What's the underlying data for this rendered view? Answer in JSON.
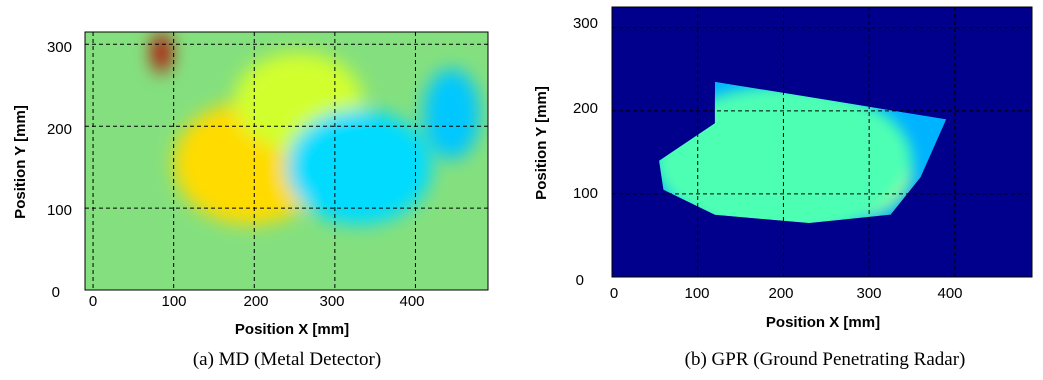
{
  "chart_data": [
    {
      "type": "heatmap",
      "caption": "(a) MD (Metal Detector)",
      "xlabel": "Position X [mm]",
      "ylabel": "Position Y [mm]",
      "xlim": [
        -10,
        490
      ],
      "ylim": [
        0,
        315
      ],
      "xticks": [
        "0",
        "100",
        "200",
        "300",
        "400"
      ],
      "yticks": [
        "0",
        "100",
        "200",
        "300"
      ],
      "grid": true,
      "background_color": "#84e07e",
      "blobs": [
        {
          "x": 195,
          "y": 155,
          "rx": 55,
          "ry": 42,
          "value": 0.82
        },
        {
          "x": 195,
          "y": 155,
          "rx": 95,
          "ry": 75,
          "value": 0.66
        },
        {
          "x": 255,
          "y": 230,
          "rx": 80,
          "ry": 60,
          "value": 0.58
        },
        {
          "x": 340,
          "y": 145,
          "rx": 45,
          "ry": 30,
          "value": 0.2
        },
        {
          "x": 330,
          "y": 150,
          "rx": 90,
          "ry": 70,
          "value": 0.34
        },
        {
          "x": 445,
          "y": 215,
          "rx": 35,
          "ry": 55,
          "value": 0.32
        },
        {
          "x": 85,
          "y": 290,
          "rx": 12,
          "ry": 25,
          "value": 0.95
        }
      ]
    },
    {
      "type": "heatmap",
      "caption": "(b) GPR (Ground Penetrating Radar)",
      "xlabel": "Position X [mm]",
      "ylabel": "Position Y [mm]",
      "xlim": [
        0,
        490
      ],
      "ylim": [
        0,
        325
      ],
      "xticks": [
        "0",
        "100",
        "200",
        "300",
        "400"
      ],
      "yticks": [
        "0",
        "100",
        "200",
        "300"
      ],
      "grid": true,
      "background_color": "#00008c",
      "region": [
        [
          55,
          140
        ],
        [
          120,
          185
        ],
        [
          120,
          235
        ],
        [
          390,
          190
        ],
        [
          360,
          120
        ],
        [
          325,
          75
        ],
        [
          230,
          65
        ],
        [
          120,
          75
        ],
        [
          60,
          105
        ]
      ],
      "blobs": [
        {
          "x": 275,
          "y": 125,
          "rx": 40,
          "ry": 30,
          "value": 0.95
        },
        {
          "x": 260,
          "y": 130,
          "rx": 90,
          "ry": 65,
          "value": 0.62
        },
        {
          "x": 200,
          "y": 140,
          "rx": 150,
          "ry": 90,
          "value": 0.45
        }
      ]
    }
  ]
}
